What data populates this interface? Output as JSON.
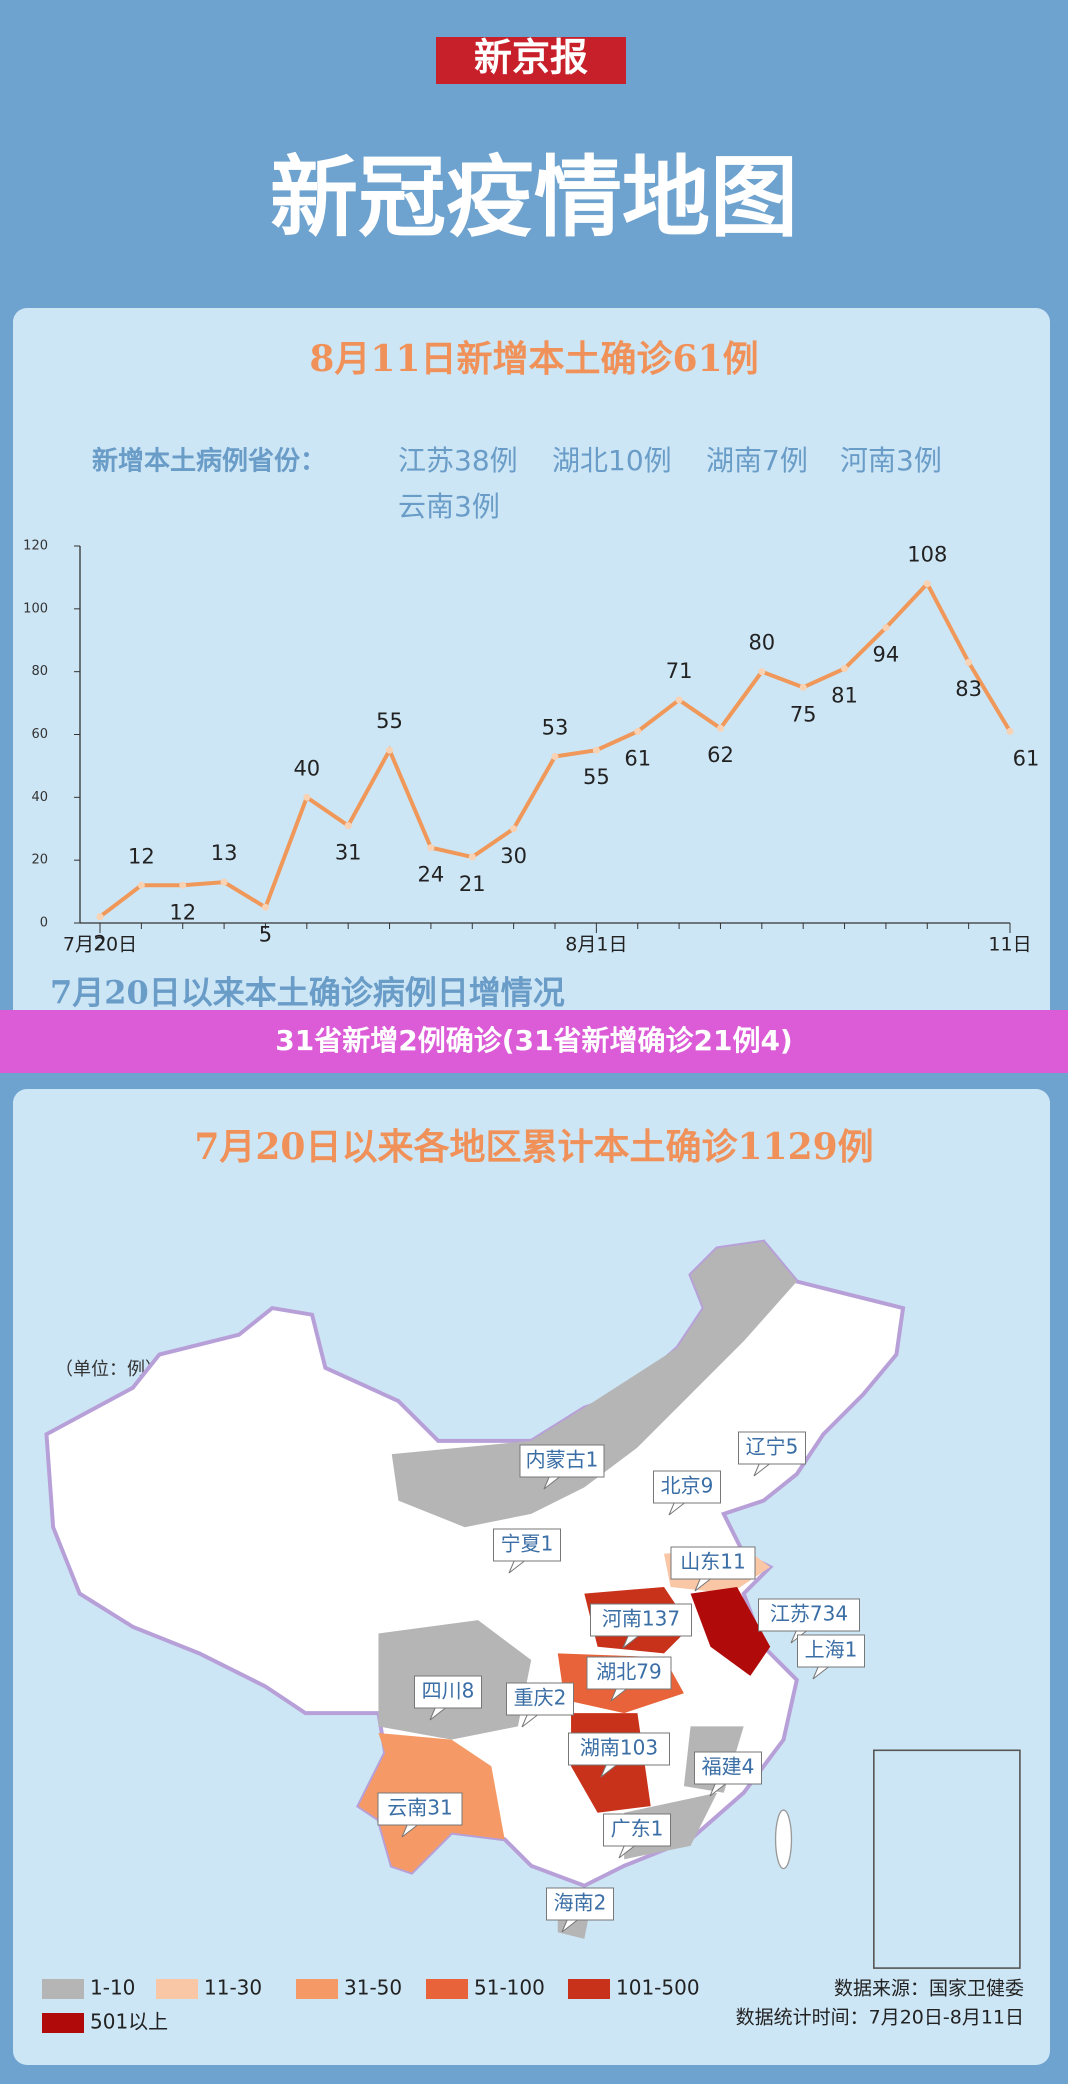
{
  "header": {
    "logo": "新京报",
    "title": "新冠疫情地图"
  },
  "daily": {
    "title": "8月11日新增本土确诊61例",
    "provinces_label": "新增本土病例省份：",
    "provinces": [
      "江苏38例",
      "湖北10例",
      "湖南7例",
      "河南3例",
      "云南3例"
    ]
  },
  "chart_data": {
    "type": "line",
    "title": "7月20日以来本土确诊病例日增情况",
    "categories": [
      "7月20日",
      null,
      null,
      null,
      null,
      null,
      null,
      null,
      null,
      null,
      null,
      null,
      "8月1日",
      null,
      null,
      null,
      null,
      null,
      null,
      null,
      null,
      null,
      "11日"
    ],
    "values": [
      2,
      12,
      12,
      13,
      5,
      40,
      31,
      55,
      24,
      21,
      30,
      53,
      55,
      61,
      71,
      62,
      80,
      75,
      81,
      94,
      108,
      83,
      61
    ],
    "color": "#f0985a",
    "ylim": [
      0,
      120
    ],
    "yticks": [
      0,
      20,
      40,
      60,
      80,
      100,
      120
    ]
  },
  "banner": "31省新增2例确诊(31省新增确诊21例4)",
  "map": {
    "title": "7月20日以来各地区累计本土确诊1129例",
    "unit": "（单位：例）",
    "labels": [
      "内蒙古1",
      "北京9",
      "辽宁5",
      "宁夏1",
      "山东11",
      "河南137",
      "江苏734",
      "湖北79",
      "上海1",
      "四川8",
      "重庆2",
      "湖南103",
      "福建4",
      "云南31",
      "广东1",
      "海南2"
    ],
    "legend": [
      {
        "label": "1-10",
        "color": "#b5b5b5"
      },
      {
        "label": "11-30",
        "color": "#f9c6a6"
      },
      {
        "label": "31-50",
        "color": "#f59a66"
      },
      {
        "label": "51-100",
        "color": "#e8633a"
      },
      {
        "label": "101-500",
        "color": "#c9321a"
      },
      {
        "label": "501以上",
        "color": "#b00a0a"
      }
    ],
    "source": "数据来源：国家卫健委",
    "period": "数据统计时间：7月20日-8月11日"
  }
}
